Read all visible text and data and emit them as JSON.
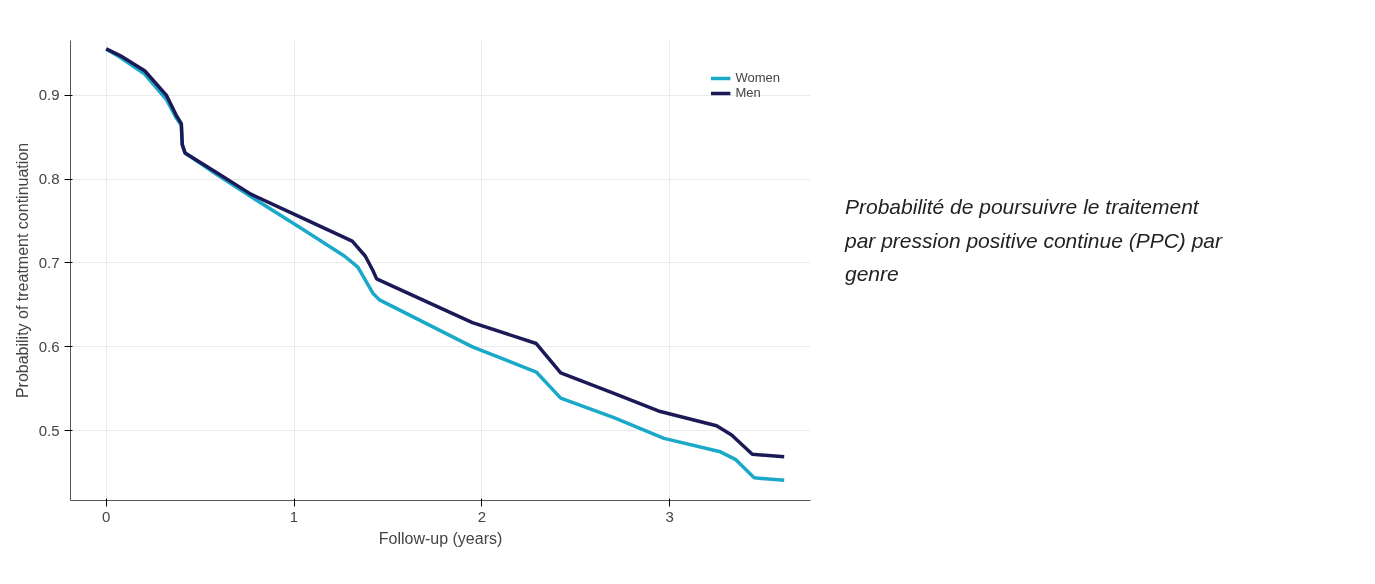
{
  "chart_data": {
    "type": "line",
    "xlabel": "Follow-up (years)",
    "ylabel": "Probability of treatment continuation",
    "xlim": [
      -0.19,
      3.75
    ],
    "ylim": [
      0.417,
      0.965
    ],
    "xticks": [
      0,
      1,
      2,
      3
    ],
    "yticks": [
      0.5,
      0.6,
      0.7,
      0.8,
      0.9
    ],
    "grid": true,
    "legend": "top right",
    "line_style": "solid",
    "marker": "none",
    "annotations": [
      "Probabilité de poursuivre le traitement par pression positive continue (PPC) par genre"
    ],
    "series": [
      {
        "name": "Women",
        "color": "#1aa9c8",
        "x": [
          0,
          0.074,
          0.205,
          0.32,
          0.375,
          0.4,
          0.405,
          0.42,
          0.585,
          0.77,
          1.04,
          1.27,
          1.34,
          1.42,
          1.455,
          1.95,
          2.29,
          2.42,
          2.7,
          2.97,
          3.27,
          3.35,
          3.45,
          3.61
        ],
        "values": [
          0.955,
          0.945,
          0.925,
          0.895,
          0.872,
          0.864,
          0.841,
          0.831,
          0.806,
          0.779,
          0.741,
          0.708,
          0.695,
          0.664,
          0.656,
          0.6,
          0.57,
          0.539,
          0.516,
          0.491,
          0.475,
          0.466,
          0.444,
          0.441
        ]
      },
      {
        "name": "Men",
        "color": "#1c1a56",
        "x": [
          0,
          0.074,
          0.205,
          0.32,
          0.375,
          0.4,
          0.405,
          0.42,
          0.585,
          0.77,
          1.04,
          1.31,
          1.38,
          1.42,
          1.44,
          1.95,
          2.29,
          2.42,
          2.7,
          2.95,
          3.25,
          3.33,
          3.44,
          3.61
        ],
        "values": [
          0.955,
          0.947,
          0.929,
          0.9,
          0.875,
          0.866,
          0.841,
          0.831,
          0.808,
          0.782,
          0.754,
          0.726,
          0.708,
          0.691,
          0.681,
          0.629,
          0.604,
          0.569,
          0.545,
          0.523,
          0.506,
          0.495,
          0.472,
          0.469
        ]
      }
    ]
  }
}
